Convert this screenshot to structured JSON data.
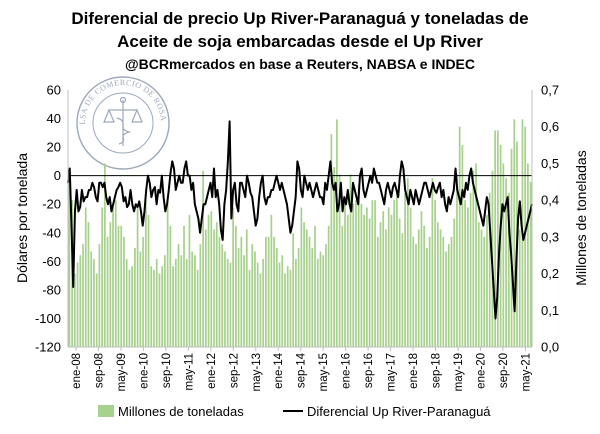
{
  "chart_data": {
    "type": "bar+line",
    "title_lines": [
      "Diferencial de precio Up River-Paranaguá y toneladas de",
      "Aceite de soja embarcadas desde el Up River"
    ],
    "subtitle": "@BCRmercados en base a Reuters, NABSA e INDEC",
    "ylabel_left": "Dólares por tonelada",
    "ylabel_right": "Millones de toneladas",
    "ylim_left": [
      -120,
      60
    ],
    "ylim_right": [
      0.0,
      0.7
    ],
    "yticks_left": [
      "60",
      "40",
      "20",
      "0",
      "-20",
      "-40",
      "-60",
      "-80",
      "-100",
      "-120"
    ],
    "yticks_right": [
      "0,7",
      "0,6",
      "0,5",
      "0,4",
      "0,3",
      "0,2",
      "0,1",
      "0,0"
    ],
    "x_tick_labels": [
      "ene-08",
      "sep-08",
      "may-09",
      "ene-10",
      "sep-10",
      "may-11",
      "ene-12",
      "sep-12",
      "may-13",
      "ene-14",
      "sep-14",
      "may-15",
      "ene-16",
      "sep-16",
      "may-17",
      "ene-18",
      "sep-18",
      "may-19",
      "ene-20",
      "sep-20",
      "may-21"
    ],
    "x_start": "ene-08",
    "frequency": "monthly",
    "series": [
      {
        "name": "Millones de toneladas",
        "axis": "right",
        "kind": "bar",
        "color": "#a9d18e",
        "values": [
          0.46,
          0.4,
          0.2,
          0.23,
          0.25,
          0.28,
          0.38,
          0.34,
          0.26,
          0.24,
          0.2,
          0.28,
          0.38,
          0.5,
          0.3,
          0.34,
          0.38,
          0.4,
          0.33,
          0.33,
          0.3,
          0.24,
          0.21,
          0.22,
          0.27,
          0.38,
          0.26,
          0.3,
          0.4,
          0.36,
          0.22,
          0.21,
          0.24,
          0.2,
          0.22,
          0.25,
          0.4,
          0.33,
          0.22,
          0.24,
          0.28,
          0.25,
          0.33,
          0.24,
          0.36,
          0.26,
          0.25,
          0.21,
          0.28,
          0.48,
          0.32,
          0.36,
          0.37,
          0.32,
          0.34,
          0.3,
          0.28,
          0.26,
          0.24,
          0.23,
          0.38,
          0.33,
          0.27,
          0.3,
          0.25,
          0.32,
          0.21,
          0.28,
          0.26,
          0.23,
          0.2,
          0.24,
          0.3,
          0.3,
          0.36,
          0.3,
          0.27,
          0.23,
          0.25,
          0.2,
          0.22,
          0.21,
          0.31,
          0.24,
          0.27,
          0.38,
          0.34,
          0.32,
          0.3,
          0.27,
          0.33,
          0.24,
          0.26,
          0.25,
          0.28,
          0.33,
          0.58,
          0.49,
          0.62,
          0.47,
          0.33,
          0.4,
          0.36,
          0.47,
          0.39,
          0.4,
          0.44,
          0.39,
          0.36,
          0.38,
          0.35,
          0.4,
          0.4,
          0.3,
          0.34,
          0.37,
          0.32,
          0.38,
          0.36,
          0.4,
          0.43,
          0.35,
          0.31,
          0.42,
          0.46,
          0.38,
          0.3,
          0.28,
          0.32,
          0.37,
          0.33,
          0.27,
          0.3,
          0.46,
          0.4,
          0.34,
          0.32,
          0.3,
          0.26,
          0.28,
          0.3,
          0.35,
          0.47,
          0.6,
          0.55,
          0.4,
          0.38,
          0.42,
          0.48,
          0.5,
          0.34,
          0.32,
          0.3,
          0.36,
          0.42,
          0.48,
          0.59,
          0.59,
          0.55,
          0.5,
          0.46,
          0.42,
          0.54,
          0.62,
          0.56,
          0.32,
          0.62,
          0.6,
          0.5,
          0.45
        ]
      },
      {
        "name": "Diferencial Up River-Paranaguá",
        "axis": "left",
        "kind": "line",
        "color": "#000000",
        "values": [
          -5,
          5,
          -35,
          -78,
          -25,
          -10,
          -25,
          -22,
          -10,
          -18,
          -15,
          -15,
          -10,
          -10,
          -5,
          -8,
          -15,
          -18,
          -5,
          -5,
          -8,
          -5,
          -15,
          -20,
          -15,
          -25,
          -20,
          -15,
          -10,
          -8,
          -5,
          -8,
          -18,
          -15,
          -22,
          -20,
          -10,
          -20,
          -25,
          -20,
          -22,
          -18,
          -25,
          -35,
          -25,
          -10,
          0,
          -5,
          -15,
          -10,
          -8,
          -20,
          -10,
          -12,
          0,
          -15,
          -25,
          -20,
          -10,
          2,
          10,
          5,
          -10,
          -5,
          0,
          -5,
          -5,
          5,
          10,
          0,
          0,
          -10,
          -5,
          -20,
          -25,
          -30,
          -40,
          -30,
          -20,
          -20,
          -15,
          -10,
          -5,
          -15,
          5,
          -15,
          -10,
          -20,
          -38,
          -45,
          -20,
          -10,
          10,
          38,
          -30,
          -10,
          -5,
          -20,
          -25,
          -5,
          -5,
          -10,
          -15,
          0,
          -5,
          -12,
          -15,
          -25,
          -35,
          -30,
          -15,
          -5,
          0,
          -15,
          -20,
          -15,
          -15,
          -10,
          -10,
          -5,
          0,
          -5,
          -10,
          -5,
          -10,
          -15,
          -20,
          -30,
          -40,
          -35,
          -25,
          -15,
          10,
          5,
          -10,
          -15,
          0,
          -5,
          -10,
          -5,
          -10,
          -15,
          -10,
          -5,
          -10,
          -15,
          -15,
          -20,
          -5,
          -10,
          0,
          10,
          -5,
          -10,
          -5,
          -25,
          -20,
          -5,
          -25,
          -15,
          -20,
          -10,
          -20,
          -25,
          -5,
          -10,
          -15,
          -20,
          0,
          5,
          -10,
          -15,
          -10,
          -5,
          0,
          -5,
          5,
          0,
          -5,
          -5,
          -10,
          -15,
          -20,
          -10,
          -5,
          -10,
          -15,
          -8,
          -5,
          -10,
          -15,
          0,
          10,
          5,
          -10,
          -15,
          -20,
          -10,
          -15,
          -20,
          -10,
          -15,
          -20,
          -15,
          -10,
          -5,
          -5,
          -10,
          -15,
          -10,
          -5,
          -10,
          -12,
          -8,
          -5,
          -15,
          -10,
          -20,
          -25,
          -15,
          -20,
          -15,
          -10,
          5,
          -10,
          -15,
          -20,
          -10,
          -15,
          -5,
          -10,
          0,
          5,
          -5,
          -10,
          -15,
          -20,
          -25,
          -30,
          -35,
          -25,
          -15,
          -20,
          -40,
          -60,
          -80,
          -100,
          -85,
          -55,
          -35,
          -20,
          -25,
          -20,
          -15,
          -40,
          -55,
          -75,
          -95,
          -60,
          -30,
          -18,
          -35,
          -45,
          -40,
          -35,
          -30,
          -25,
          -20
        ]
      }
    ],
    "legend": [
      "Millones de toneladas",
      "Diferencial Up River-Paranaguá"
    ],
    "legend_position": "bottom",
    "watermark_text": "BOLSA DE COMERCIO DE ROSARIO"
  }
}
